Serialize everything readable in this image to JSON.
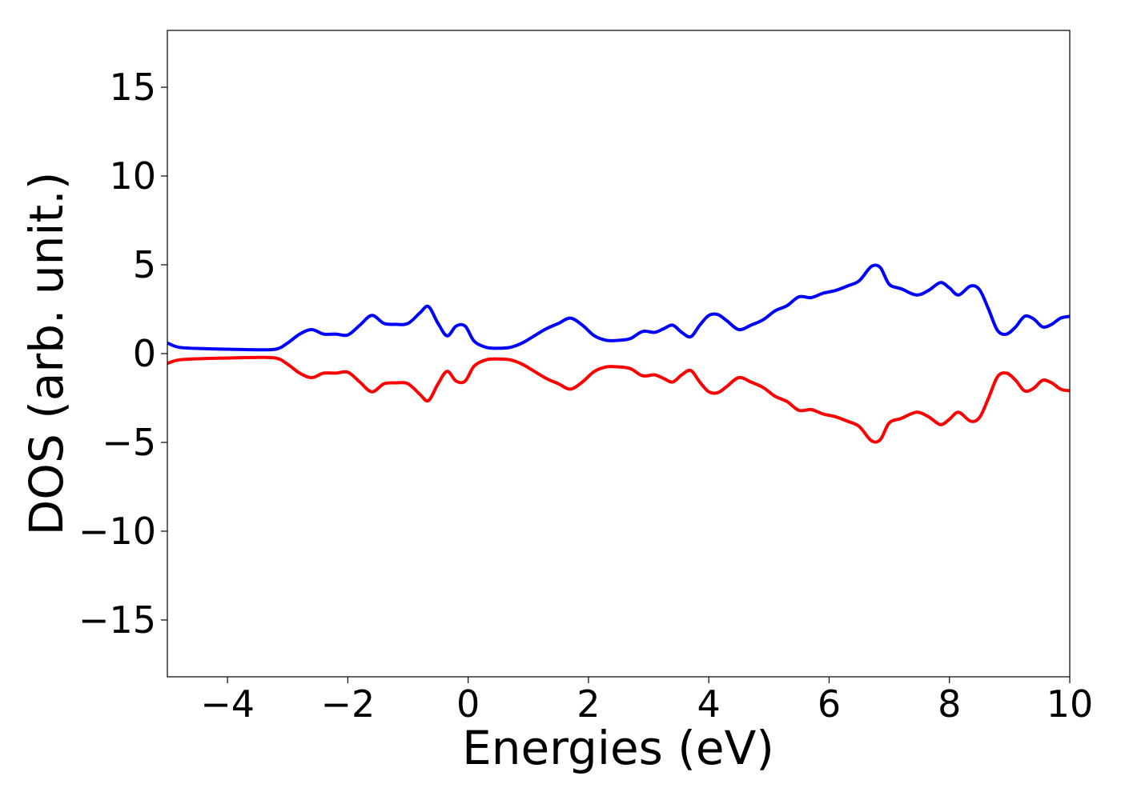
{
  "chart_data": {
    "type": "line",
    "title": "",
    "xlabel": "Energies (eV)",
    "ylabel": "DOS (arb. unit.)",
    "xlim": [
      -5,
      10
    ],
    "ylim": [
      -18.2,
      18.2
    ],
    "xticks": [
      -4,
      -2,
      0,
      2,
      4,
      6,
      8,
      10
    ],
    "xtick_labels": [
      "−4",
      "−2",
      "0",
      "2",
      "4",
      "6",
      "8",
      "10"
    ],
    "yticks": [
      15,
      10,
      5,
      0,
      -5,
      -10,
      -15
    ],
    "ytick_labels": [
      "15",
      "10",
      "5",
      "0",
      "−5",
      "−10",
      "−15"
    ],
    "grid": false,
    "legend": "none",
    "series": [
      {
        "color": "#0000ff",
        "x": [
          -5.0,
          -4.8,
          -4.4,
          -4.0,
          -3.6,
          -3.2,
          -3.0,
          -2.8,
          -2.6,
          -2.4,
          -2.2,
          -2.0,
          -1.8,
          -1.6,
          -1.4,
          -1.2,
          -1.0,
          -0.8,
          -0.66,
          -0.5,
          -0.35,
          -0.2,
          -0.05,
          0.1,
          0.3,
          0.5,
          0.7,
          0.9,
          1.1,
          1.3,
          1.5,
          1.7,
          1.9,
          2.1,
          2.3,
          2.5,
          2.7,
          2.9,
          3.1,
          3.25,
          3.4,
          3.55,
          3.7,
          3.85,
          4.0,
          4.15,
          4.3,
          4.5,
          4.7,
          4.9,
          5.1,
          5.3,
          5.5,
          5.7,
          5.9,
          6.1,
          6.3,
          6.5,
          6.7,
          6.85,
          7.0,
          7.2,
          7.45,
          7.65,
          7.85,
          8.0,
          8.15,
          8.35,
          8.5,
          8.65,
          8.8,
          8.95,
          9.1,
          9.25,
          9.4,
          9.55,
          9.7,
          9.85,
          10.0
        ],
        "y": [
          0.6,
          0.35,
          0.28,
          0.25,
          0.22,
          0.25,
          0.6,
          1.1,
          1.35,
          1.1,
          1.1,
          1.05,
          1.6,
          2.15,
          1.7,
          1.65,
          1.7,
          2.3,
          2.65,
          1.7,
          1.0,
          1.55,
          1.55,
          0.7,
          0.35,
          0.3,
          0.35,
          0.6,
          1.0,
          1.4,
          1.7,
          2.0,
          1.6,
          1.0,
          0.75,
          0.75,
          0.85,
          1.25,
          1.2,
          1.4,
          1.6,
          1.2,
          0.95,
          1.6,
          2.15,
          2.2,
          1.85,
          1.35,
          1.6,
          1.9,
          2.4,
          2.7,
          3.2,
          3.15,
          3.4,
          3.55,
          3.8,
          4.1,
          4.9,
          4.85,
          3.9,
          3.65,
          3.3,
          3.55,
          4.0,
          3.7,
          3.3,
          3.8,
          3.6,
          2.5,
          1.3,
          1.1,
          1.5,
          2.1,
          1.95,
          1.5,
          1.65,
          2.0,
          2.1
        ]
      },
      {
        "color": "#ff0000",
        "x": [
          -5.0,
          -4.8,
          -4.4,
          -4.0,
          -3.6,
          -3.2,
          -3.0,
          -2.8,
          -2.6,
          -2.4,
          -2.2,
          -2.0,
          -1.8,
          -1.6,
          -1.4,
          -1.2,
          -1.0,
          -0.8,
          -0.66,
          -0.5,
          -0.35,
          -0.2,
          -0.05,
          0.1,
          0.3,
          0.5,
          0.7,
          0.9,
          1.1,
          1.3,
          1.5,
          1.7,
          1.9,
          2.1,
          2.3,
          2.5,
          2.7,
          2.9,
          3.1,
          3.25,
          3.4,
          3.55,
          3.7,
          3.85,
          4.0,
          4.15,
          4.3,
          4.5,
          4.7,
          4.9,
          5.1,
          5.3,
          5.5,
          5.7,
          5.9,
          6.1,
          6.3,
          6.5,
          6.7,
          6.85,
          7.0,
          7.2,
          7.45,
          7.65,
          7.85,
          8.0,
          8.15,
          8.35,
          8.5,
          8.65,
          8.8,
          8.95,
          9.1,
          9.25,
          9.4,
          9.55,
          9.7,
          9.85,
          10.0
        ],
        "y": [
          -0.55,
          -0.35,
          -0.28,
          -0.25,
          -0.22,
          -0.25,
          -0.6,
          -1.1,
          -1.35,
          -1.1,
          -1.1,
          -1.05,
          -1.6,
          -2.15,
          -1.7,
          -1.65,
          -1.7,
          -2.3,
          -2.65,
          -1.7,
          -1.0,
          -1.55,
          -1.55,
          -0.7,
          -0.35,
          -0.3,
          -0.35,
          -0.6,
          -1.0,
          -1.4,
          -1.7,
          -2.0,
          -1.6,
          -1.0,
          -0.75,
          -0.75,
          -0.85,
          -1.25,
          -1.2,
          -1.4,
          -1.6,
          -1.2,
          -0.95,
          -1.6,
          -2.15,
          -2.2,
          -1.85,
          -1.35,
          -1.6,
          -1.9,
          -2.4,
          -2.7,
          -3.2,
          -3.15,
          -3.4,
          -3.55,
          -3.8,
          -4.1,
          -4.9,
          -4.85,
          -3.9,
          -3.65,
          -3.3,
          -3.55,
          -4.0,
          -3.7,
          -3.3,
          -3.8,
          -3.6,
          -2.5,
          -1.3,
          -1.1,
          -1.5,
          -2.1,
          -1.95,
          -1.5,
          -1.65,
          -2.0,
          -2.1
        ]
      }
    ]
  }
}
